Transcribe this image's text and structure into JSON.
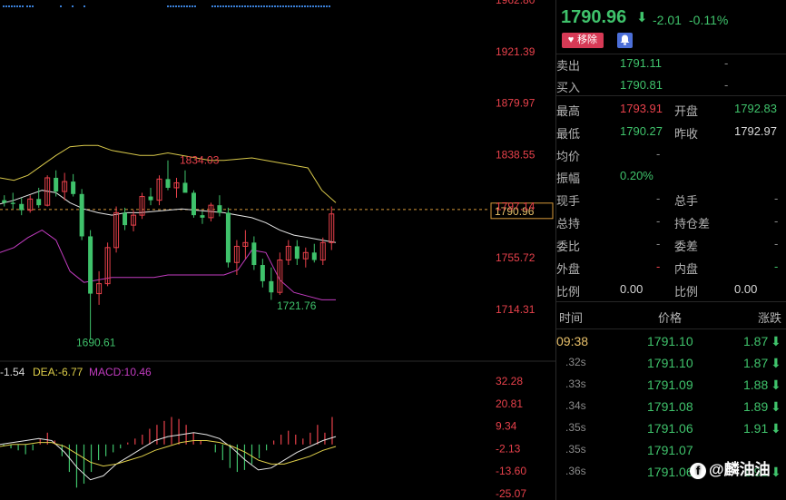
{
  "chart_data": [
    {
      "type": "candlestick",
      "y_ticks": [
        "1962.80",
        "1921.39",
        "1879.97",
        "1838.55",
        "1797.14",
        "1755.72",
        "1714.31"
      ],
      "current_price_label": "1790.96",
      "high_marker": "1834.03",
      "low_markers": [
        "1690.61",
        "1721.76"
      ],
      "candles": [
        [
          1802,
          1806,
          1797,
          1800
        ],
        [
          1800,
          1808,
          1795,
          1799
        ],
        [
          1799,
          1804,
          1790,
          1794
        ],
        [
          1794,
          1806,
          1792,
          1803
        ],
        [
          1803,
          1812,
          1796,
          1798
        ],
        [
          1798,
          1822,
          1797,
          1820
        ],
        [
          1820,
          1826,
          1805,
          1809
        ],
        [
          1809,
          1824,
          1802,
          1817
        ],
        [
          1817,
          1823,
          1805,
          1807
        ],
        [
          1807,
          1811,
          1770,
          1773
        ],
        [
          1773,
          1778,
          1690,
          1727
        ],
        [
          1727,
          1745,
          1718,
          1735
        ],
        [
          1735,
          1768,
          1733,
          1764
        ],
        [
          1764,
          1797,
          1760,
          1792
        ],
        [
          1792,
          1796,
          1778,
          1782
        ],
        [
          1782,
          1794,
          1777,
          1790
        ],
        [
          1790,
          1808,
          1787,
          1805
        ],
        [
          1805,
          1812,
          1798,
          1802
        ],
        [
          1802,
          1822,
          1798,
          1819
        ],
        [
          1819,
          1834,
          1810,
          1812
        ],
        [
          1812,
          1820,
          1804,
          1816
        ],
        [
          1816,
          1826,
          1809,
          1808
        ],
        [
          1808,
          1810,
          1788,
          1790
        ],
        [
          1790,
          1793,
          1783,
          1788
        ],
        [
          1788,
          1800,
          1785,
          1798
        ],
        [
          1798,
          1806,
          1789,
          1792
        ],
        [
          1792,
          1796,
          1748,
          1752
        ],
        [
          1752,
          1770,
          1742,
          1765
        ],
        [
          1765,
          1778,
          1755,
          1768
        ],
        [
          1768,
          1773,
          1746,
          1750
        ],
        [
          1750,
          1755,
          1732,
          1737
        ],
        [
          1737,
          1748,
          1722,
          1728
        ],
        [
          1728,
          1760,
          1726,
          1754
        ],
        [
          1754,
          1770,
          1750,
          1765
        ],
        [
          1765,
          1770,
          1750,
          1755
        ],
        [
          1755,
          1764,
          1748,
          1760
        ],
        [
          1760,
          1767,
          1752,
          1754
        ],
        [
          1754,
          1772,
          1750,
          1768
        ],
        [
          1768,
          1797,
          1762,
          1791
        ]
      ],
      "bollinger": {
        "upper": [
          1820,
          1818,
          1822,
          1830,
          1838,
          1845,
          1846,
          1846,
          1842,
          1840,
          1838,
          1838,
          1840,
          1838,
          1836,
          1834,
          1834,
          1835,
          1836,
          1834,
          1832,
          1830,
          1828,
          1810,
          1800
        ],
        "middle": [
          1799,
          1802,
          1806,
          1810,
          1808,
          1800,
          1795,
          1792,
          1790,
          1792,
          1792,
          1793,
          1794,
          1795,
          1794,
          1793,
          1792,
          1790,
          1788,
          1784,
          1778,
          1774,
          1772,
          1770,
          1768
        ],
        "lower": [
          1760,
          1764,
          1772,
          1778,
          1770,
          1745,
          1736,
          1738,
          1740,
          1740,
          1740,
          1740,
          1742,
          1742,
          1742,
          1742,
          1742,
          1746,
          1762,
          1760,
          1738,
          1728,
          1725,
          1722,
          1722
        ]
      }
    },
    {
      "type": "macd",
      "legend": {
        "dif": "-1.54",
        "dea": "DEA:-6.77",
        "macd": "MACD:10.46"
      },
      "y_ticks": [
        "32.28",
        "20.81",
        "9.34",
        "-2.13",
        "-13.60",
        "-25.07"
      ],
      "histogram": [
        -1,
        -2,
        -3,
        -5,
        -3,
        3,
        6,
        2,
        -6,
        -14,
        -22,
        -20,
        -14,
        -8,
        -6,
        -4,
        -2,
        1,
        3,
        5,
        8,
        10,
        12,
        14,
        13,
        10,
        6,
        2,
        0,
        -4,
        -8,
        -12,
        -14,
        -13,
        -10,
        -7,
        -3,
        2,
        5,
        7,
        5,
        3,
        6,
        10,
        6,
        14
      ],
      "dif": [
        0,
        1,
        2,
        3,
        2,
        -4,
        -12,
        -18,
        -16,
        -10,
        -6,
        -2,
        2,
        4,
        5,
        6,
        5,
        3,
        -2,
        -8,
        -13,
        -12,
        -8,
        -4,
        -1,
        2,
        4
      ],
      "dea": [
        -1,
        0,
        0,
        1,
        1,
        -1,
        -5,
        -9,
        -11,
        -10,
        -8,
        -6,
        -3,
        -1,
        1,
        2,
        2,
        1,
        -1,
        -4,
        -8,
        -10,
        -10,
        -8,
        -6,
        -3,
        -1
      ]
    }
  ],
  "quote": {
    "price": "1790.96",
    "change": "-2.01",
    "percent": "-0.11%",
    "arrow": "⬇"
  },
  "buttons": {
    "remove": "移除",
    "heart_icon": "heart-icon",
    "bell_icon": "bell-icon"
  },
  "book": {
    "sell_label": "卖出",
    "sell_price": "1791.11",
    "sell_vol": "-",
    "buy_label": "买入",
    "buy_price": "1790.81",
    "buy_vol": "-"
  },
  "stats": [
    {
      "l1": "最高",
      "v1": "1793.91",
      "c1": "red",
      "l2": "开盘",
      "v2": "1792.83",
      "c2": "green"
    },
    {
      "l1": "最低",
      "v1": "1790.27",
      "c1": "green",
      "l2": "昨收",
      "v2": "1792.97",
      "c2": "white"
    },
    {
      "l1": "均价",
      "v1": "-",
      "c1": "dash",
      "l2": "",
      "v2": "",
      "c2": "white"
    },
    {
      "l1": "振幅",
      "v1": "0.20%",
      "c1": "green",
      "l2": "",
      "v2": "",
      "c2": "white"
    },
    {
      "l1": "现手",
      "v1": "-",
      "c1": "dash",
      "l2": "总手",
      "v2": "-",
      "c2": "dash"
    },
    {
      "l1": "总持",
      "v1": "-",
      "c1": "dash",
      "l2": "持仓差",
      "v2": "-",
      "c2": "dash"
    },
    {
      "l1": "委比",
      "v1": "-",
      "c1": "dash",
      "l2": "委差",
      "v2": "-",
      "c2": "dash"
    },
    {
      "l1": "外盘",
      "v1": "-",
      "c1": "red",
      "l2": "内盘",
      "v2": "-",
      "c2": "green"
    },
    {
      "l1": "比例",
      "v1": "0.00",
      "c1": "white",
      "l2": "比例",
      "v2": "0.00",
      "c2": "white"
    }
  ],
  "ticks_header": {
    "time": "时间",
    "price": "价格",
    "change": "涨跌"
  },
  "ticks": [
    {
      "time": "09:38",
      "price": "1791.10",
      "change": "1.87"
    },
    {
      "time": ".32s",
      "price": "1791.10",
      "change": "1.87"
    },
    {
      "time": ".33s",
      "price": "1791.09",
      "change": "1.88"
    },
    {
      "time": ".34s",
      "price": "1791.08",
      "change": "1.89"
    },
    {
      "time": ".35s",
      "price": "1791.06",
      "change": "1.91"
    },
    {
      "time": ".35s",
      "price": "1791.07",
      "change": ""
    },
    {
      "time": ".36s",
      "price": "1791.06",
      "change": "1.91"
    }
  ],
  "watermark": {
    "logo": "f",
    "text": "@麟油油"
  },
  "colors": {
    "up": "#e8414b",
    "down": "#3fc26b",
    "boll_upper": "#d8c84a",
    "boll_mid": "#e6e6e6",
    "boll_lower": "#c23cc0",
    "macd_dea": "#c23cc0"
  }
}
